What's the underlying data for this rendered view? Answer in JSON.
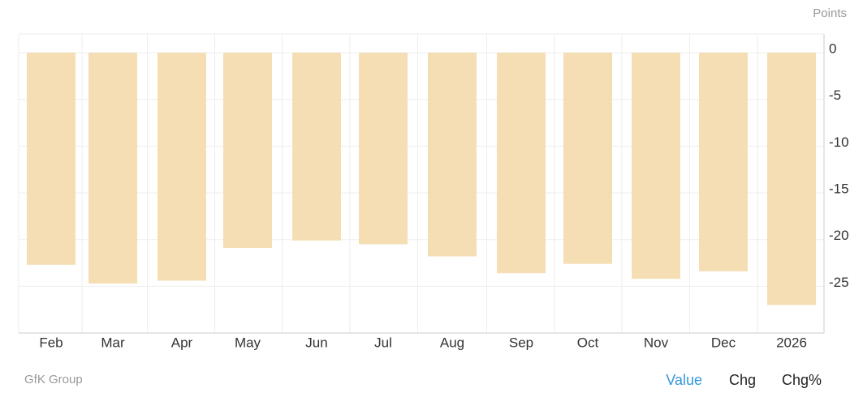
{
  "chart_data": {
    "type": "bar",
    "unit_label": "Points",
    "source": "GfK Group",
    "categories": [
      "Feb",
      "Mar",
      "Apr",
      "May",
      "Jun",
      "Jul",
      "Aug",
      "Sep",
      "Oct",
      "Nov",
      "Dec",
      "2026"
    ],
    "values": [
      -22.7,
      -24.7,
      -24.4,
      -20.9,
      -20.1,
      -20.5,
      -21.8,
      -23.6,
      -22.6,
      -24.2,
      -23.4,
      -27.0
    ],
    "color": "#f5deb3",
    "ylim": [
      -30,
      2
    ],
    "yticks": [
      0,
      -5,
      -10,
      -15,
      -20,
      -25
    ],
    "grid": true,
    "tabs": [
      "Value",
      "Chg",
      "Chg%"
    ],
    "active_tab": 0
  }
}
